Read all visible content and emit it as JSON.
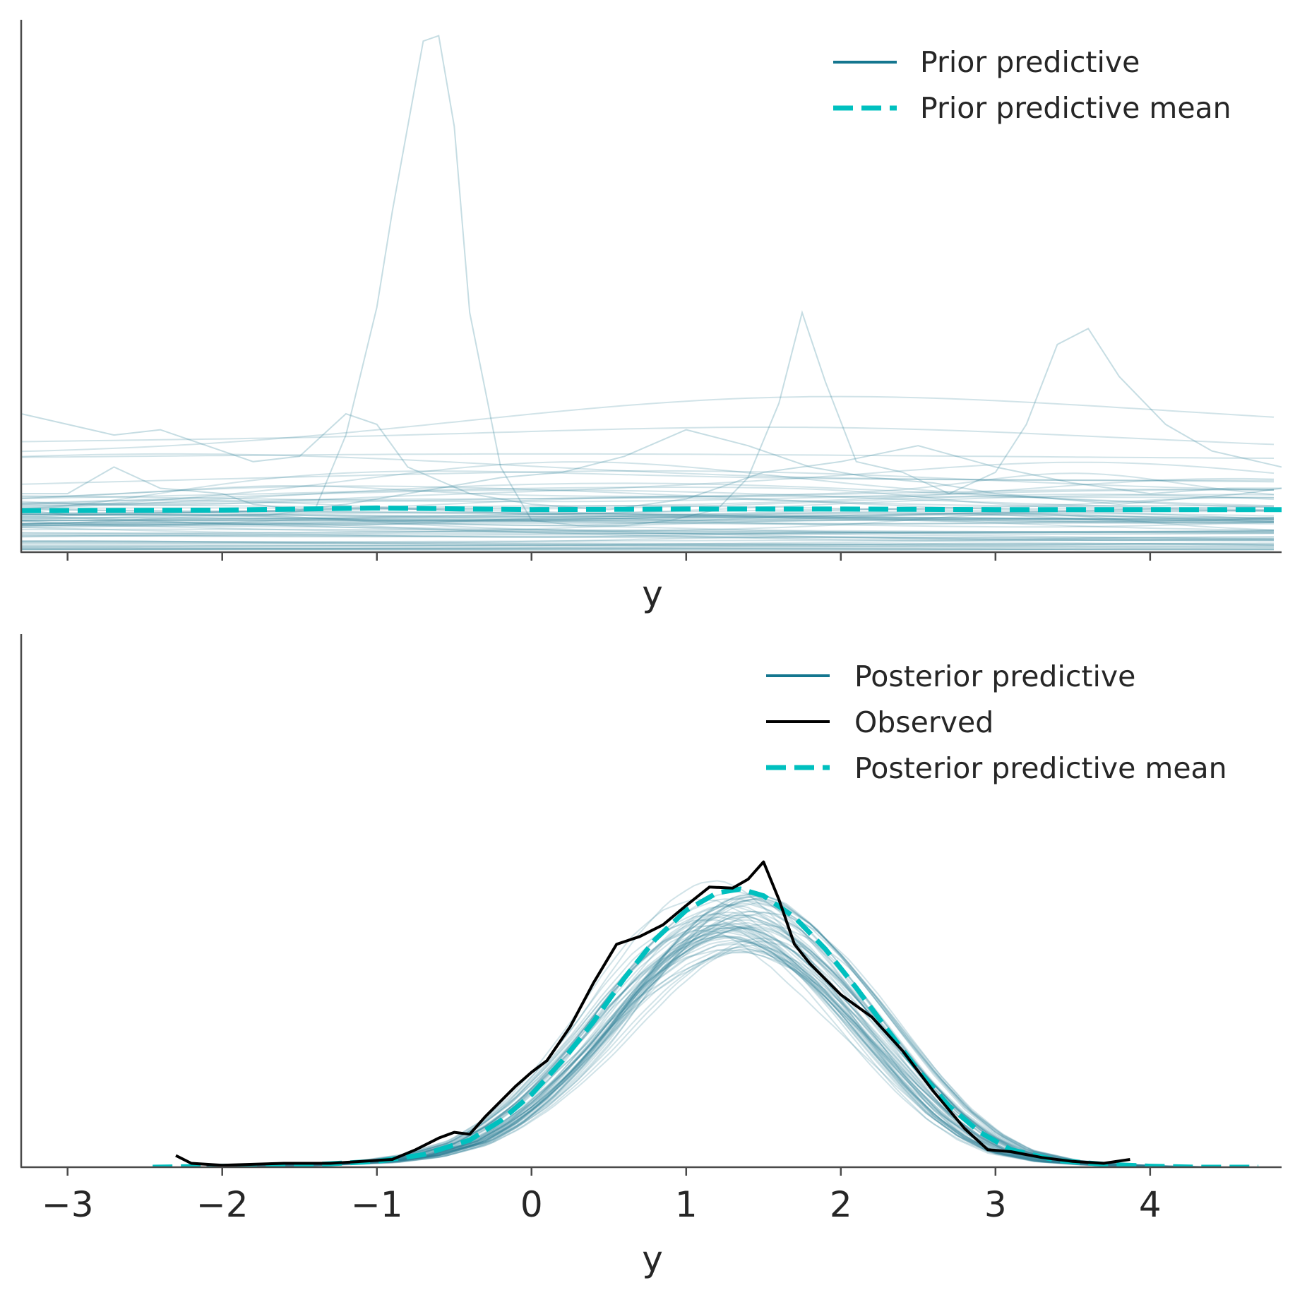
{
  "chart_data": [
    {
      "type": "line",
      "title": "",
      "xlabel": "y",
      "ylabel": "",
      "xlim": [
        -3.3,
        4.85
      ],
      "ylim": [
        0,
        1.0
      ],
      "xticks": [
        -3,
        -2,
        -1,
        0,
        1,
        2,
        3,
        4
      ],
      "show_xtick_labels": false,
      "grid": false,
      "legend": {
        "position": "top-right",
        "entries": [
          {
            "label": "Prior predictive",
            "color": "#14768f",
            "style": "solid"
          },
          {
            "label": "Prior predictive mean",
            "color": "#00c0bf",
            "style": "dashed"
          }
        ]
      },
      "series": [
        {
          "name": "Prior predictive",
          "style": "solid",
          "color": "#14768f",
          "note_shape": "ensemble of ~70 faint sample density curves",
          "highlighted_samples": [
            {
              "x": [
                -3.3,
                -3.0,
                -2.7,
                -2.3,
                -2.0,
                -1.7,
                -1.4,
                -1.2,
                -1.0,
                -0.9,
                -0.8,
                -0.7,
                -0.6,
                -0.5,
                -0.4,
                -0.2,
                0.0,
                0.3,
                0.6,
                0.9,
                1.2,
                1.4,
                1.6,
                1.75,
                1.9,
                2.1,
                2.4,
                2.7,
                3.0,
                3.2,
                3.4,
                3.6,
                3.8,
                4.1,
                4.4,
                4.7,
                4.85
              ],
              "y": [
                0.08,
                0.07,
                0.07,
                0.07,
                0.07,
                0.07,
                0.08,
                0.22,
                0.46,
                0.64,
                0.8,
                0.96,
                0.97,
                0.8,
                0.45,
                0.16,
                0.06,
                0.05,
                0.05,
                0.06,
                0.08,
                0.14,
                0.28,
                0.45,
                0.32,
                0.17,
                0.15,
                0.11,
                0.15,
                0.24,
                0.39,
                0.42,
                0.33,
                0.24,
                0.19,
                0.17,
                0.16
              ]
            },
            {
              "x": [
                -3.3,
                -3.0,
                -2.7,
                -2.4,
                -2.0,
                -1.8,
                -1.5,
                -1.2,
                -1.0,
                -0.8,
                -0.4,
                0.0,
                0.5,
                1.0,
                1.5,
                2.0,
                2.5,
                3.0,
                3.5,
                4.0,
                4.5,
                4.85
              ],
              "y": [
                0.26,
                0.24,
                0.22,
                0.23,
                0.19,
                0.17,
                0.18,
                0.26,
                0.24,
                0.16,
                0.11,
                0.09,
                0.08,
                0.1,
                0.15,
                0.17,
                0.2,
                0.16,
                0.13,
                0.11,
                0.12,
                0.12
              ]
            },
            {
              "x": [
                -3.3,
                -3.0,
                -2.7,
                -2.4,
                -2.0,
                -1.8,
                -1.5,
                -1.2,
                -1.0,
                -0.6,
                -0.2,
                0.2,
                0.6,
                1.0,
                1.4,
                1.8,
                2.2,
                2.6,
                3.0,
                3.4,
                3.8,
                4.2,
                4.6,
                4.85
              ],
              "y": [
                0.11,
                0.11,
                0.16,
                0.12,
                0.11,
                0.09,
                0.08,
                0.09,
                0.1,
                0.12,
                0.14,
                0.15,
                0.18,
                0.23,
                0.2,
                0.16,
                0.14,
                0.13,
                0.11,
                0.1,
                0.09,
                0.1,
                0.11,
                0.12
              ]
            }
          ],
          "band_range": [
            0.0,
            0.2
          ]
        },
        {
          "name": "Prior predictive mean",
          "style": "dashed",
          "color": "#00c0bf",
          "x": [
            -3.3,
            -2.0,
            -1.0,
            0.0,
            1.0,
            2.0,
            3.0,
            4.0,
            4.85
          ],
          "y": [
            0.078,
            0.079,
            0.083,
            0.08,
            0.081,
            0.081,
            0.08,
            0.08,
            0.08
          ]
        }
      ]
    },
    {
      "type": "line",
      "title": "",
      "xlabel": "y",
      "ylabel": "",
      "xlim": [
        -3.3,
        4.85
      ],
      "ylim": [
        0,
        0.55
      ],
      "xticks": [
        -3,
        -2,
        -1,
        0,
        1,
        2,
        3,
        4
      ],
      "xtick_labels": [
        "−3",
        "−2",
        "−1",
        "0",
        "1",
        "2",
        "3",
        "4"
      ],
      "grid": false,
      "legend": {
        "position": "top-right",
        "entries": [
          {
            "label": "Posterior predictive",
            "color": "#14768f",
            "style": "solid"
          },
          {
            "label": "Observed",
            "color": "#000000",
            "style": "solid"
          },
          {
            "label": "Posterior predictive mean",
            "color": "#00c0bf",
            "style": "dashed"
          }
        ]
      },
      "series": [
        {
          "name": "Posterior predictive",
          "style": "solid",
          "color": "#14768f",
          "note_shape": "ensemble of ~70 faint sample density curves around the mean"
        },
        {
          "name": "Observed",
          "style": "solid",
          "color": "#000000",
          "x": [
            -2.3,
            -2.2,
            -2.0,
            -1.6,
            -1.3,
            -1.1,
            -0.9,
            -0.75,
            -0.6,
            -0.5,
            -0.4,
            -0.3,
            -0.1,
            0.0,
            0.1,
            0.25,
            0.4,
            0.55,
            0.7,
            0.85,
            1.0,
            1.15,
            1.3,
            1.4,
            1.5,
            1.6,
            1.7,
            1.8,
            2.0,
            2.2,
            2.4,
            2.6,
            2.8,
            2.95,
            3.1,
            3.3,
            3.5,
            3.7,
            3.87
          ],
          "y": [
            0.012,
            0.004,
            0.002,
            0.004,
            0.004,
            0.006,
            0.008,
            0.018,
            0.03,
            0.036,
            0.034,
            0.052,
            0.084,
            0.098,
            0.11,
            0.145,
            0.19,
            0.23,
            0.238,
            0.25,
            0.27,
            0.289,
            0.288,
            0.297,
            0.315,
            0.276,
            0.23,
            0.21,
            0.178,
            0.155,
            0.12,
            0.078,
            0.04,
            0.018,
            0.016,
            0.01,
            0.006,
            0.004,
            0.008
          ]
        },
        {
          "name": "Posterior predictive mean",
          "style": "dashed",
          "color": "#00c0bf",
          "x": [
            -2.45,
            -2.0,
            -1.5,
            -1.0,
            -0.7,
            -0.4,
            -0.2,
            0.0,
            0.2,
            0.4,
            0.6,
            0.8,
            1.0,
            1.2,
            1.35,
            1.5,
            1.7,
            1.9,
            2.1,
            2.3,
            2.5,
            2.7,
            2.9,
            3.1,
            3.4,
            3.7,
            4.0,
            4.3,
            4.7
          ],
          "y": [
            0.0,
            0.001,
            0.002,
            0.006,
            0.013,
            0.028,
            0.048,
            0.075,
            0.11,
            0.15,
            0.195,
            0.235,
            0.265,
            0.283,
            0.287,
            0.28,
            0.258,
            0.225,
            0.185,
            0.142,
            0.1,
            0.063,
            0.036,
            0.018,
            0.007,
            0.003,
            0.001,
            0.0,
            0.0
          ]
        }
      ]
    }
  ]
}
